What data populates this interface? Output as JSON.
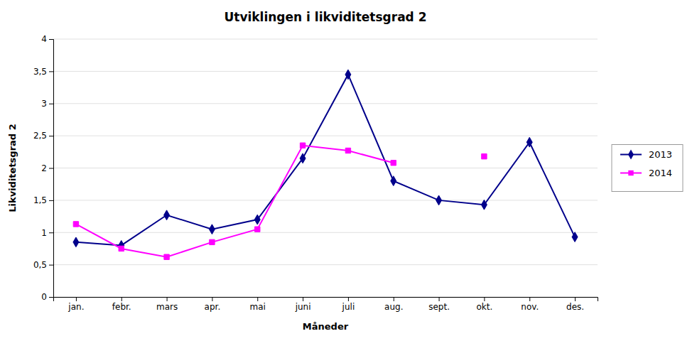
{
  "chart_data": {
    "type": "line",
    "title": "Utviklingen i likviditetsgrad 2",
    "xlabel": "Måneder",
    "ylabel": "Likviditetsgrad 2",
    "categories": [
      "jan.",
      "febr.",
      "mars",
      "apr.",
      "mai",
      "juni",
      "juli",
      "aug.",
      "sept.",
      "okt.",
      "nov.",
      "des."
    ],
    "series": [
      {
        "name": "2013",
        "color": "#00008B",
        "marker": "diamond",
        "values": [
          0.85,
          0.8,
          1.27,
          1.05,
          1.2,
          2.15,
          3.45,
          1.8,
          1.5,
          1.43,
          2.4,
          0.93
        ]
      },
      {
        "name": "2014",
        "color": "#FF00FF",
        "marker": "square",
        "values": [
          1.13,
          0.75,
          0.62,
          0.85,
          1.05,
          2.35,
          2.27,
          2.08,
          null,
          2.18,
          null,
          null
        ]
      }
    ],
    "ylim": [
      0,
      4
    ],
    "yticks": [
      0,
      {
        "value": 0.5,
        "label": "0,5"
      },
      1,
      {
        "value": 1.5,
        "label": "1,5"
      },
      2,
      {
        "value": 2.5,
        "label": "2,5"
      },
      3,
      {
        "value": 3.5,
        "label": "3,5"
      },
      4
    ],
    "grid": true,
    "legend": "right"
  }
}
